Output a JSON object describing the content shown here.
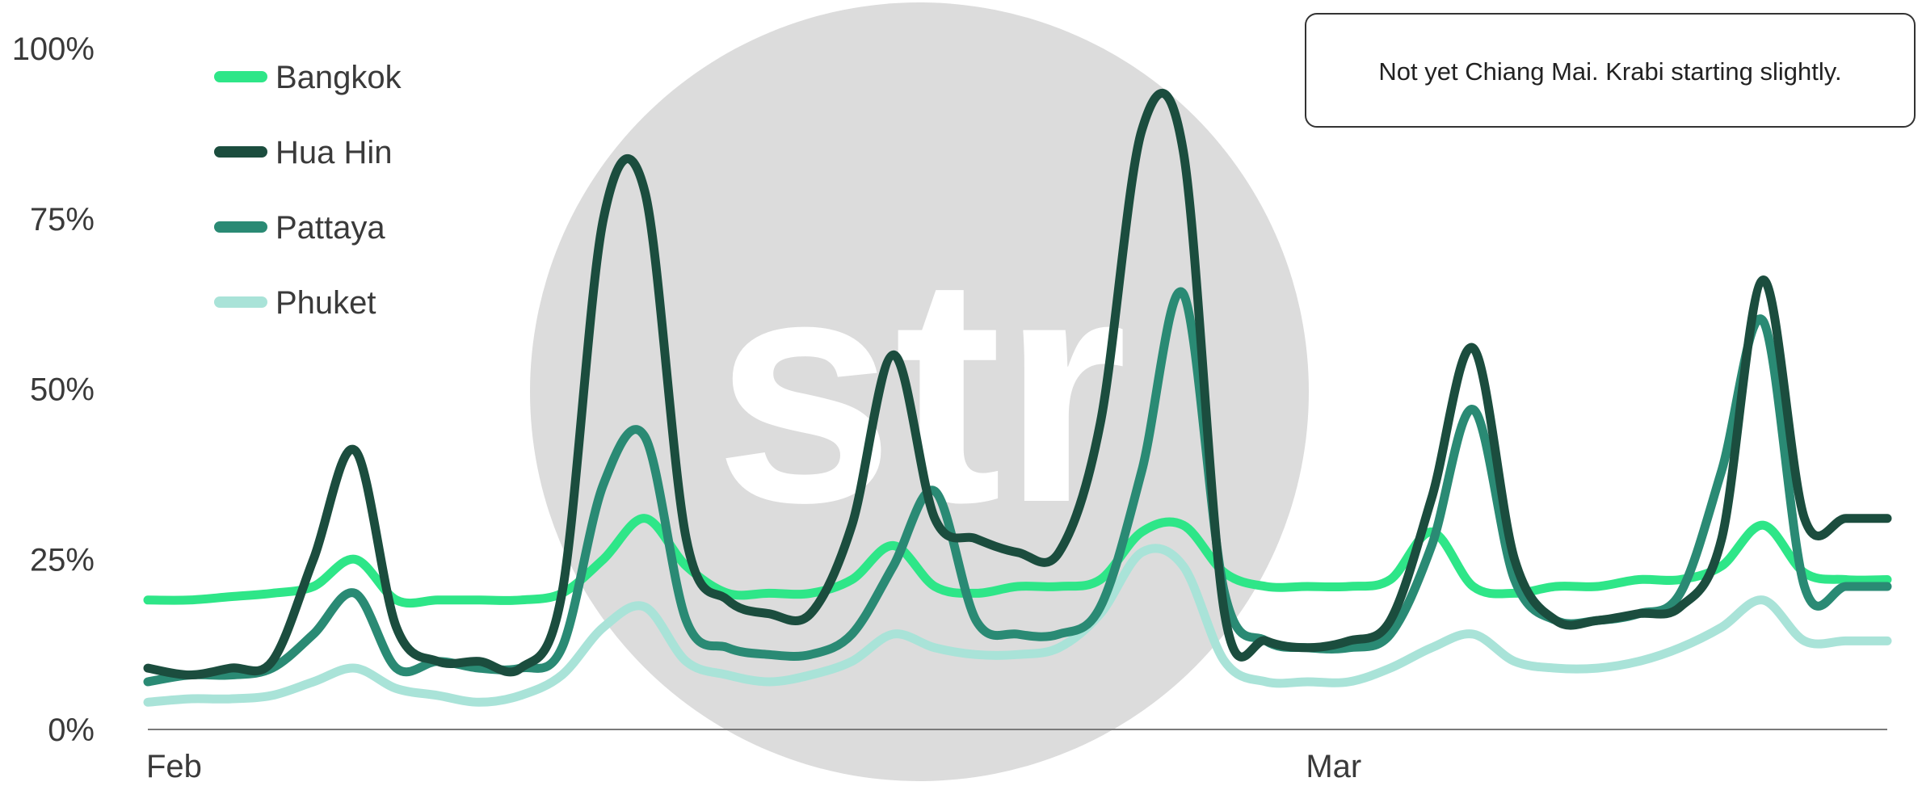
{
  "watermark": {
    "text": "str"
  },
  "annotation": {
    "text": "Not yet Chiang Mai. Krabi starting slightly."
  },
  "chart_data": {
    "type": "line",
    "xlabel": "",
    "ylabel": "",
    "x_ticks": [
      "Feb",
      "Mar"
    ],
    "x_tick_days": [
      1,
      29
    ],
    "x_range": [
      1,
      43
    ],
    "y_ticks": [
      "0%",
      "25%",
      "50%",
      "75%",
      "100%"
    ],
    "ylim": [
      0,
      100
    ],
    "grid": false,
    "legend_position": "top-left",
    "x": [
      1,
      2,
      3,
      4,
      5,
      6,
      7,
      8,
      9,
      10,
      11,
      12,
      13,
      14,
      15,
      16,
      17,
      18,
      19,
      20,
      21,
      22,
      23,
      24,
      25,
      26,
      27,
      28,
      29,
      30,
      31,
      32,
      33,
      34,
      35,
      36,
      37,
      38,
      39,
      40,
      41,
      42,
      43
    ],
    "series": [
      {
        "name": "Bangkok",
        "color": "#2ee688",
        "values": [
          19,
          19,
          19.5,
          20,
          21,
          25,
          19,
          19,
          19,
          19,
          20,
          25,
          31,
          24,
          20,
          20,
          20,
          22,
          27,
          21,
          20,
          21,
          21,
          22,
          29,
          30,
          23,
          21,
          21,
          21,
          22,
          29,
          21,
          20,
          21,
          21,
          22,
          22,
          24,
          30,
          23,
          22,
          22
        ]
      },
      {
        "name": "Hua Hin",
        "color": "#1b4d3e",
        "values": [
          9,
          8,
          9,
          10,
          25,
          41,
          15,
          10,
          10,
          9,
          20,
          75,
          79,
          28,
          19,
          17,
          17,
          30,
          55,
          31,
          28,
          26,
          26,
          45,
          88,
          85,
          17,
          13,
          12,
          13,
          16,
          34,
          56,
          25,
          16,
          16,
          17,
          18,
          28,
          66,
          31,
          31,
          31
        ]
      },
      {
        "name": "Pattaya",
        "color": "#2a8a74",
        "values": [
          7,
          8,
          8,
          9,
          14,
          20,
          9,
          10,
          9,
          9,
          12,
          36,
          43,
          16,
          12,
          11,
          11,
          14,
          24,
          35,
          16,
          14,
          14,
          18,
          38,
          64,
          20,
          13,
          12,
          12,
          14,
          27,
          47,
          22,
          16,
          16,
          17,
          20,
          38,
          60,
          21,
          21,
          21
        ]
      },
      {
        "name": "Phuket",
        "color": "#a9e3d8",
        "values": [
          4,
          4.5,
          4.5,
          5,
          7,
          9,
          6,
          5,
          4,
          5,
          8,
          15,
          18,
          10,
          8,
          7,
          8,
          10,
          14,
          12,
          11,
          11,
          12,
          17,
          26,
          24,
          10,
          7,
          7,
          7,
          9,
          12,
          14,
          10,
          9,
          9,
          10,
          12,
          15,
          19,
          13,
          13,
          13
        ]
      }
    ]
  }
}
